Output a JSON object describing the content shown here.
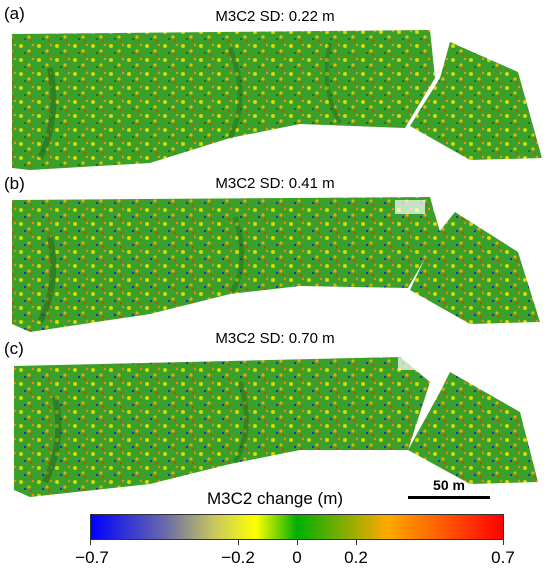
{
  "panels": [
    {
      "letter": "(a)",
      "title": "M3C2 SD: 0.22 m"
    },
    {
      "letter": "(b)",
      "title": "M3C2 SD: 0.41 m"
    },
    {
      "letter": "(c)",
      "title": "M3C2 SD: 0.70 m"
    }
  ],
  "scalebar": {
    "label": "50 m"
  },
  "colorbar": {
    "title": "M3C2 change (m)",
    "ticks": [
      "−0.7",
      "−0.2",
      "0",
      "0.2",
      "0.7"
    ],
    "colors": [
      "#0000ff",
      "#6a6aa8",
      "#c8c860",
      "#ffff00",
      "#00b000",
      "#ffaa00",
      "#ff0000"
    ]
  }
}
